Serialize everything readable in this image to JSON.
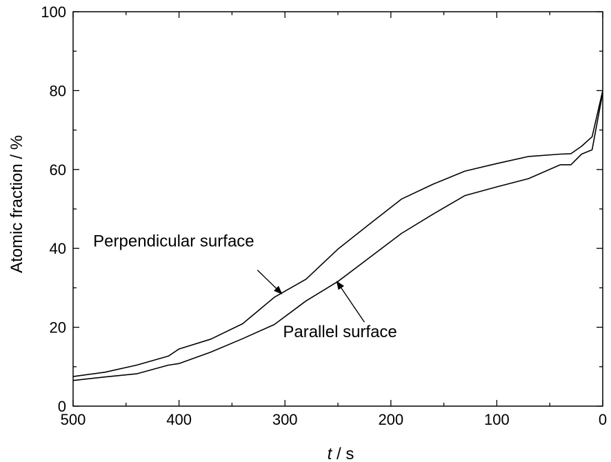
{
  "chart_data": {
    "type": "line",
    "title": "",
    "xlabel_var": "t",
    "xlabel_rest": " / s",
    "ylabel": "Atomic fraction / %",
    "xlim": [
      500,
      0
    ],
    "ylim": [
      0,
      100
    ],
    "x_major_ticks": [
      500,
      400,
      300,
      200,
      100,
      0
    ],
    "y_major_ticks": [
      0,
      20,
      40,
      60,
      80,
      100
    ],
    "x_minor_step": 50,
    "y_minor_step": 10,
    "x_tick_labels": [
      "500",
      "400",
      "300",
      "200",
      "100",
      "0"
    ],
    "y_tick_labels": [
      "0",
      "20",
      "40",
      "60",
      "80",
      "100"
    ],
    "grid": false,
    "line_color": "#000000",
    "series": [
      {
        "name": "Perpendicular surface",
        "x": [
          500,
          470,
          440,
          410,
          400,
          370,
          340,
          310,
          280,
          250,
          220,
          190,
          160,
          130,
          100,
          70,
          40,
          30,
          20,
          10,
          0
        ],
        "y": [
          7.5,
          8.6,
          10.4,
          12.7,
          14.5,
          17.0,
          20.9,
          27.6,
          32.2,
          39.8,
          46.2,
          52.5,
          56.3,
          59.6,
          61.5,
          63.3,
          63.9,
          64.0,
          65.9,
          68.3,
          80.0
        ]
      },
      {
        "name": "Parallel surface",
        "x": [
          500,
          470,
          440,
          410,
          400,
          370,
          340,
          310,
          280,
          250,
          220,
          190,
          160,
          130,
          100,
          70,
          40,
          30,
          20,
          10,
          0
        ],
        "y": [
          6.5,
          7.4,
          8.2,
          10.4,
          10.8,
          13.7,
          17.1,
          20.7,
          26.7,
          31.6,
          37.7,
          43.8,
          48.7,
          53.4,
          55.6,
          57.7,
          61.2,
          61.2,
          63.9,
          65.0,
          79.5
        ]
      }
    ],
    "annotations": [
      {
        "text": "Perpendicular surface",
        "series_index": 0,
        "target_x": 303,
        "target_y": 28.5,
        "label_x": 405,
        "label_y": 40.5
      },
      {
        "text": "Parallel surface",
        "series_index": 1,
        "target_x": 251,
        "target_y": 31.6,
        "label_x": 248,
        "label_y": 17.5
      }
    ]
  }
}
